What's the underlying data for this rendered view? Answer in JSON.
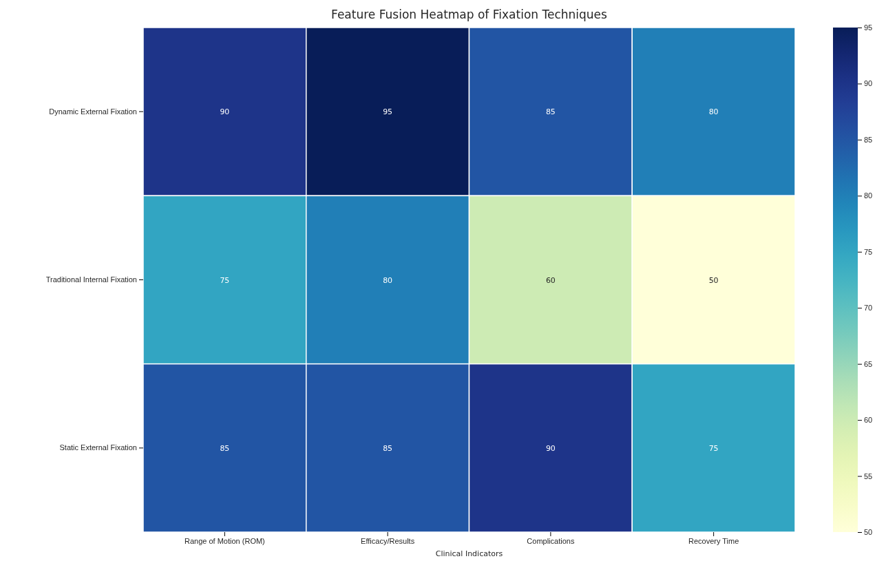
{
  "chart_data": {
    "type": "heatmap",
    "title": "Feature Fusion Heatmap of Fixation Techniques",
    "xlabel": "Clinical Indicators",
    "categories": [
      "Range of Motion (ROM)",
      "Efficacy/Results",
      "Complications",
      "Recovery Time"
    ],
    "y_categories": [
      "Dynamic External Fixation",
      "Traditional Internal Fixation",
      "Static External Fixation"
    ],
    "cells": [
      [
        90,
        95,
        85,
        80
      ],
      [
        75,
        80,
        60,
        50
      ],
      [
        85,
        85,
        90,
        75
      ]
    ],
    "clim": [
      50,
      95
    ],
    "cticks": [
      50,
      55,
      60,
      65,
      70,
      75,
      80,
      85,
      90,
      95
    ],
    "data_labels": true
  }
}
